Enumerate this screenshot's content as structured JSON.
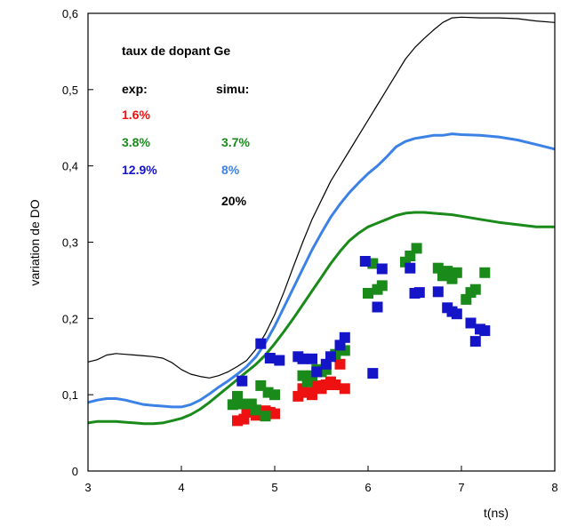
{
  "chart_data": {
    "type": "scatter",
    "title": "",
    "xlabel": "t(ns)",
    "ylabel": "variation de DO",
    "xlim": [
      3,
      8
    ],
    "ylim": [
      0,
      0.6
    ],
    "x_ticks": [
      "3",
      "4",
      "5",
      "6",
      "7",
      "8"
    ],
    "y_ticks": [
      "0",
      "0,1",
      "0,2",
      "0,3",
      "0,4",
      "0,5",
      "0,6"
    ],
    "grid": false,
    "legend": {
      "heading": "taux de dopant Ge",
      "exp_header": "exp:",
      "simu_header": "simu:",
      "exp_entries": [
        {
          "label": "1.6%",
          "color": "#ee1111"
        },
        {
          "label": "3.8%",
          "color": "#1a8a1a"
        },
        {
          "label": "12.9%",
          "color": "#1414c8"
        }
      ],
      "simu_entries": [
        {
          "label": "3.7%",
          "color": "#1a8a1a"
        },
        {
          "label": "8%",
          "color": "#3c82e6"
        },
        {
          "label": "20%",
          "color": "#000000"
        }
      ]
    },
    "series": [
      {
        "name": "20%",
        "kind": "line",
        "color": "#000000",
        "width": 1.2,
        "points": [
          [
            3.0,
            0.143
          ],
          [
            3.1,
            0.146
          ],
          [
            3.2,
            0.152
          ],
          [
            3.3,
            0.154
          ],
          [
            3.4,
            0.153
          ],
          [
            3.5,
            0.152
          ],
          [
            3.6,
            0.151
          ],
          [
            3.7,
            0.15
          ],
          [
            3.8,
            0.148
          ],
          [
            3.9,
            0.142
          ],
          [
            4.0,
            0.133
          ],
          [
            4.1,
            0.127
          ],
          [
            4.2,
            0.124
          ],
          [
            4.3,
            0.122
          ],
          [
            4.4,
            0.125
          ],
          [
            4.5,
            0.13
          ],
          [
            4.6,
            0.137
          ],
          [
            4.7,
            0.145
          ],
          [
            4.8,
            0.16
          ],
          [
            4.9,
            0.18
          ],
          [
            5.0,
            0.205
          ],
          [
            5.1,
            0.235
          ],
          [
            5.2,
            0.268
          ],
          [
            5.3,
            0.3
          ],
          [
            5.4,
            0.33
          ],
          [
            5.5,
            0.355
          ],
          [
            5.6,
            0.38
          ],
          [
            5.7,
            0.4
          ],
          [
            5.8,
            0.42
          ],
          [
            5.9,
            0.44
          ],
          [
            6.0,
            0.46
          ],
          [
            6.1,
            0.48
          ],
          [
            6.2,
            0.5
          ],
          [
            6.3,
            0.52
          ],
          [
            6.4,
            0.54
          ],
          [
            6.5,
            0.555
          ],
          [
            6.6,
            0.567
          ],
          [
            6.7,
            0.578
          ],
          [
            6.8,
            0.588
          ],
          [
            6.9,
            0.594
          ],
          [
            7.0,
            0.595
          ],
          [
            7.2,
            0.594
          ],
          [
            7.4,
            0.594
          ],
          [
            7.6,
            0.593
          ],
          [
            7.8,
            0.59
          ],
          [
            8.0,
            0.588
          ]
        ]
      },
      {
        "name": "8%",
        "kind": "line",
        "color": "#3c82e6",
        "width": 3,
        "points": [
          [
            3.0,
            0.09
          ],
          [
            3.1,
            0.093
          ],
          [
            3.2,
            0.095
          ],
          [
            3.3,
            0.095
          ],
          [
            3.4,
            0.093
          ],
          [
            3.5,
            0.09
          ],
          [
            3.6,
            0.087
          ],
          [
            3.7,
            0.086
          ],
          [
            3.8,
            0.085
          ],
          [
            3.9,
            0.084
          ],
          [
            4.0,
            0.084
          ],
          [
            4.1,
            0.087
          ],
          [
            4.2,
            0.093
          ],
          [
            4.3,
            0.101
          ],
          [
            4.4,
            0.11
          ],
          [
            4.5,
            0.118
          ],
          [
            4.6,
            0.127
          ],
          [
            4.7,
            0.137
          ],
          [
            4.8,
            0.15
          ],
          [
            4.9,
            0.168
          ],
          [
            5.0,
            0.19
          ],
          [
            5.1,
            0.215
          ],
          [
            5.2,
            0.24
          ],
          [
            5.3,
            0.265
          ],
          [
            5.4,
            0.29
          ],
          [
            5.5,
            0.312
          ],
          [
            5.6,
            0.333
          ],
          [
            5.7,
            0.35
          ],
          [
            5.8,
            0.365
          ],
          [
            5.9,
            0.378
          ],
          [
            6.0,
            0.39
          ],
          [
            6.1,
            0.4
          ],
          [
            6.2,
            0.412
          ],
          [
            6.3,
            0.425
          ],
          [
            6.4,
            0.432
          ],
          [
            6.5,
            0.436
          ],
          [
            6.6,
            0.438
          ],
          [
            6.7,
            0.44
          ],
          [
            6.8,
            0.44
          ],
          [
            6.9,
            0.442
          ],
          [
            7.0,
            0.441
          ],
          [
            7.2,
            0.44
          ],
          [
            7.4,
            0.438
          ],
          [
            7.6,
            0.434
          ],
          [
            7.8,
            0.428
          ],
          [
            8.0,
            0.422
          ]
        ]
      },
      {
        "name": "3.7%",
        "kind": "line",
        "color": "#1a8a1a",
        "width": 3,
        "points": [
          [
            3.0,
            0.063
          ],
          [
            3.1,
            0.065
          ],
          [
            3.2,
            0.065
          ],
          [
            3.3,
            0.065
          ],
          [
            3.4,
            0.064
          ],
          [
            3.5,
            0.063
          ],
          [
            3.6,
            0.062
          ],
          [
            3.7,
            0.062
          ],
          [
            3.8,
            0.063
          ],
          [
            3.9,
            0.066
          ],
          [
            4.0,
            0.069
          ],
          [
            4.1,
            0.074
          ],
          [
            4.2,
            0.081
          ],
          [
            4.3,
            0.09
          ],
          [
            4.4,
            0.1
          ],
          [
            4.5,
            0.11
          ],
          [
            4.6,
            0.12
          ],
          [
            4.7,
            0.13
          ],
          [
            4.8,
            0.14
          ],
          [
            4.9,
            0.152
          ],
          [
            5.0,
            0.167
          ],
          [
            5.1,
            0.183
          ],
          [
            5.2,
            0.2
          ],
          [
            5.3,
            0.218
          ],
          [
            5.4,
            0.236
          ],
          [
            5.5,
            0.254
          ],
          [
            5.6,
            0.272
          ],
          [
            5.7,
            0.288
          ],
          [
            5.8,
            0.302
          ],
          [
            5.9,
            0.312
          ],
          [
            6.0,
            0.32
          ],
          [
            6.1,
            0.325
          ],
          [
            6.2,
            0.33
          ],
          [
            6.3,
            0.335
          ],
          [
            6.4,
            0.338
          ],
          [
            6.5,
            0.339
          ],
          [
            6.6,
            0.339
          ],
          [
            6.7,
            0.338
          ],
          [
            6.8,
            0.337
          ],
          [
            6.9,
            0.336
          ],
          [
            7.0,
            0.334
          ],
          [
            7.2,
            0.33
          ],
          [
            7.4,
            0.326
          ],
          [
            7.6,
            0.323
          ],
          [
            7.8,
            0.32
          ],
          [
            8.0,
            0.32
          ]
        ]
      },
      {
        "name": "1.6%",
        "kind": "scatter",
        "color": "#ee1111",
        "points": [
          [
            4.6,
            0.066
          ],
          [
            4.67,
            0.068
          ],
          [
            4.7,
            0.077
          ],
          [
            4.75,
            0.08
          ],
          [
            4.8,
            0.073
          ],
          [
            4.85,
            0.075
          ],
          [
            4.9,
            0.079
          ],
          [
            4.95,
            0.077
          ],
          [
            5.0,
            0.075
          ],
          [
            5.25,
            0.098
          ],
          [
            5.3,
            0.108
          ],
          [
            5.35,
            0.103
          ],
          [
            5.4,
            0.1
          ],
          [
            5.45,
            0.112
          ],
          [
            5.5,
            0.108
          ],
          [
            5.55,
            0.113
          ],
          [
            5.6,
            0.117
          ],
          [
            5.65,
            0.113
          ],
          [
            5.7,
            0.14
          ],
          [
            5.75,
            0.108
          ]
        ]
      },
      {
        "name": "3.8%",
        "kind": "scatter",
        "color": "#1a8a1a",
        "points": [
          [
            4.55,
            0.087
          ],
          [
            4.6,
            0.098
          ],
          [
            4.65,
            0.088
          ],
          [
            4.75,
            0.088
          ],
          [
            4.8,
            0.08
          ],
          [
            4.85,
            0.112
          ],
          [
            4.9,
            0.072
          ],
          [
            4.93,
            0.103
          ],
          [
            5.0,
            0.1
          ],
          [
            5.3,
            0.125
          ],
          [
            5.35,
            0.117
          ],
          [
            5.4,
            0.125
          ],
          [
            5.45,
            0.133
          ],
          [
            5.5,
            0.13
          ],
          [
            5.55,
            0.133
          ],
          [
            5.65,
            0.153
          ],
          [
            5.7,
            0.164
          ],
          [
            5.75,
            0.158
          ],
          [
            6.0,
            0.233
          ],
          [
            6.05,
            0.272
          ],
          [
            6.1,
            0.238
          ],
          [
            6.15,
            0.243
          ],
          [
            6.4,
            0.274
          ],
          [
            6.45,
            0.282
          ],
          [
            6.52,
            0.292
          ],
          [
            6.75,
            0.266
          ],
          [
            6.8,
            0.256
          ],
          [
            6.85,
            0.262
          ],
          [
            6.9,
            0.252
          ],
          [
            6.95,
            0.26
          ],
          [
            7.05,
            0.225
          ],
          [
            7.1,
            0.234
          ],
          [
            7.15,
            0.238
          ],
          [
            7.25,
            0.26
          ]
        ]
      },
      {
        "name": "12.9%",
        "kind": "scatter",
        "color": "#1414c8",
        "points": [
          [
            4.65,
            0.118
          ],
          [
            4.85,
            0.167
          ],
          [
            4.95,
            0.148
          ],
          [
            5.05,
            0.145
          ],
          [
            5.25,
            0.15
          ],
          [
            5.3,
            0.147
          ],
          [
            5.4,
            0.147
          ],
          [
            5.45,
            0.13
          ],
          [
            5.55,
            0.14
          ],
          [
            5.6,
            0.15
          ],
          [
            5.7,
            0.165
          ],
          [
            5.75,
            0.175
          ],
          [
            5.97,
            0.275
          ],
          [
            6.05,
            0.128
          ],
          [
            6.1,
            0.215
          ],
          [
            6.15,
            0.265
          ],
          [
            6.45,
            0.266
          ],
          [
            6.5,
            0.233
          ],
          [
            6.55,
            0.234
          ],
          [
            6.75,
            0.235
          ],
          [
            6.85,
            0.214
          ],
          [
            6.9,
            0.209
          ],
          [
            6.95,
            0.206
          ],
          [
            7.1,
            0.194
          ],
          [
            7.15,
            0.17
          ],
          [
            7.2,
            0.186
          ],
          [
            7.25,
            0.184
          ]
        ]
      }
    ]
  }
}
